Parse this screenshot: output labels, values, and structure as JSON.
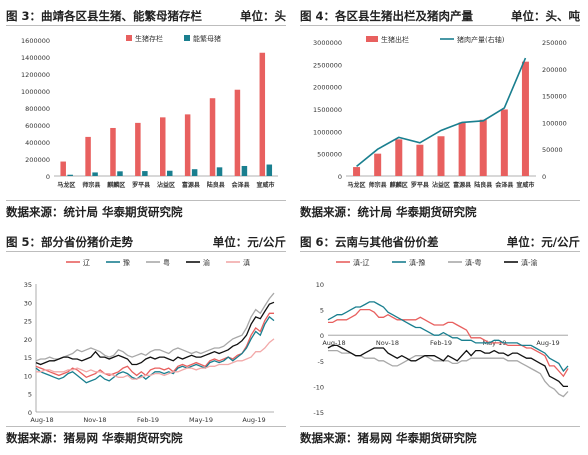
{
  "panels": [
    {
      "title": "图 3：曲靖各区县生猪、能繁母猪存栏",
      "unit": "单位：头",
      "source": "数据来源：统计局  华泰期货研究院"
    },
    {
      "title": "图 4：各区县生猪出栏及猪肉产量",
      "unit": "单位：头、吨",
      "source": "数据来源：统计局  华泰期货研究院"
    },
    {
      "title": "图 5：部分省份猪价走势",
      "unit": "单位：元/公斤",
      "source": "数据来源：猪易网  华泰期货研究院"
    },
    {
      "title": "图 6：云南与其他省份价差",
      "unit": "单位：元/公斤",
      "source": "数据来源：猪易网  华泰期货研究院"
    }
  ],
  "colors": {
    "red": "#e8605f",
    "teal": "#1a7f8f",
    "gray": "#a8a8a8",
    "black": "#111111",
    "pink": "#f2a9a9"
  },
  "chart_data": [
    {
      "type": "bar",
      "categories": [
        "马龙区",
        "师宗县",
        "麒麟区",
        "罗平县",
        "沾益区",
        "富源县",
        "陆良县",
        "会泽县",
        "宣威市"
      ],
      "series": [
        {
          "name": "生猪存栏",
          "values": [
            170000,
            460000,
            565000,
            625000,
            690000,
            725000,
            915000,
            1015000,
            1450000
          ]
        },
        {
          "name": "能繁母猪",
          "values": [
            15000,
            42000,
            55000,
            58000,
            62000,
            80000,
            102000,
            118000,
            135000
          ]
        }
      ],
      "yticks": [
        0,
        200000,
        400000,
        600000,
        800000,
        1000000,
        1200000,
        1400000,
        1600000
      ],
      "ylim": [
        0,
        1600000
      ],
      "legend": "top-right"
    },
    {
      "type": "bar",
      "categories": [
        "马龙区",
        "师宗县",
        "麒麟区",
        "罗平县",
        "沾益区",
        "富源县",
        "陆良县",
        "会泽县",
        "宣威市"
      ],
      "series": [
        {
          "name": "生猪出栏",
          "type": "bar",
          "axis": "left",
          "values": [
            200000,
            500000,
            820000,
            700000,
            890000,
            1200000,
            1260000,
            1490000,
            2560000
          ]
        },
        {
          "name": "猪肉产量(右轴)",
          "type": "line",
          "axis": "right",
          "values": [
            18000,
            50000,
            72000,
            62000,
            85000,
            100000,
            103000,
            127000,
            220000
          ]
        }
      ],
      "yticks_left": [
        0,
        500000,
        1000000,
        1500000,
        2000000,
        2500000,
        3000000
      ],
      "ylim_left": [
        0,
        3000000
      ],
      "yticks_right": [
        0,
        50000,
        100000,
        150000,
        200000,
        250000
      ],
      "ylim_right": [
        0,
        250000
      ],
      "legend": "top"
    },
    {
      "type": "line",
      "xticks": [
        "Aug-18",
        "Nov-18",
        "Feb-19",
        "May-19",
        "Aug-19"
      ],
      "yticks": [
        0,
        5,
        10,
        15,
        20,
        25,
        30,
        35
      ],
      "ylim": [
        0,
        35
      ],
      "series": [
        {
          "name": "辽",
          "values": [
            12.5,
            12,
            11.5,
            11,
            10.5,
            10,
            10.5,
            11,
            12,
            11.5,
            10.5,
            9.5,
            10,
            10.5,
            11.5,
            10.5,
            10,
            10.5,
            11,
            12,
            12.5,
            11,
            10,
            11,
            10,
            11.5,
            12,
            12,
            11.5,
            12,
            11,
            12.5,
            13,
            12.5,
            13,
            13.5,
            13,
            12.5,
            14,
            14.5,
            14,
            14.5,
            15,
            14.5,
            15.5,
            16,
            18,
            21,
            23,
            22,
            25,
            27,
            27
          ]
        },
        {
          "name": "豫",
          "values": [
            12,
            11,
            10.5,
            10,
            9.5,
            9,
            9.5,
            10.5,
            11,
            10,
            9,
            8,
            8.5,
            9,
            10,
            9,
            8.5,
            9.5,
            10.5,
            11,
            10.5,
            9.5,
            9,
            10,
            9,
            10,
            11,
            11,
            10.5,
            11,
            10.5,
            12,
            12.5,
            12,
            12.5,
            13,
            12.5,
            12,
            13.5,
            14,
            13.5,
            14,
            15,
            14,
            15,
            16,
            17.5,
            20,
            22,
            21,
            24,
            26,
            25
          ]
        },
        {
          "name": "粤",
          "values": [
            14,
            14.5,
            14.5,
            15,
            14.5,
            14.5,
            15,
            15.5,
            16,
            17,
            16.5,
            17,
            17.5,
            17,
            16.5,
            15.5,
            15,
            15.5,
            17,
            16.5,
            15.5,
            15,
            15.5,
            16,
            15.5,
            16.5,
            17,
            17,
            16.5,
            16,
            17,
            17.5,
            17,
            16.5,
            16,
            16.5,
            16,
            16.5,
            17,
            17.5,
            17.5,
            18,
            19,
            20,
            20.5,
            21,
            23,
            26,
            28,
            27,
            29,
            31,
            32.5
          ]
        },
        {
          "name": "渝",
          "values": [
            13.5,
            13,
            13.5,
            14,
            14,
            14.5,
            15,
            15,
            14.5,
            14.5,
            14,
            14.5,
            15,
            16.5,
            15,
            15,
            14.5,
            15,
            15.5,
            15,
            14.5,
            13,
            13,
            13.5,
            14.5,
            15,
            14.5,
            15,
            15,
            14.5,
            14,
            15,
            14.5,
            15,
            15.5,
            15,
            15,
            15.5,
            16,
            16.5,
            16,
            16.5,
            17,
            18,
            18.5,
            19.5,
            21,
            24,
            26,
            25.5,
            27.5,
            29.5,
            30
          ]
        },
        {
          "name": "滇",
          "values": [
            11,
            11,
            11.5,
            11.5,
            11,
            11,
            11,
            11.5,
            11.5,
            12,
            11.5,
            11,
            11.5,
            11,
            11,
            10.5,
            10.5,
            10,
            9.5,
            9.5,
            10,
            9,
            9,
            9.5,
            10,
            10,
            10.5,
            10.5,
            10,
            10.5,
            11,
            11,
            11.5,
            12,
            12,
            11.5,
            12,
            12,
            12.5,
            12.5,
            13,
            13,
            13,
            13.5,
            14,
            14,
            14.5,
            15,
            16.5,
            16.5,
            17.5,
            19,
            20
          ]
        }
      ],
      "legend": "top"
    },
    {
      "type": "line",
      "xticks": [
        "Aug-18",
        "Nov-18",
        "Feb-19",
        "May-19",
        "Aug-19"
      ],
      "yticks": [
        -15,
        -10,
        -5,
        0,
        5,
        10
      ],
      "ylim": [
        -15,
        10
      ],
      "series": [
        {
          "name": "滇-辽",
          "values": [
            2.5,
            2.5,
            3,
            3,
            3,
            3.5,
            4,
            5,
            5,
            5,
            4.5,
            3.5,
            3.5,
            4,
            3.5,
            3,
            3,
            3,
            3,
            3,
            3.5,
            3,
            2.5,
            2,
            2,
            2,
            2.5,
            2.5,
            2,
            1.5,
            1,
            -0.5,
            -0.5,
            -0.5,
            -1,
            -1.5,
            -1.5,
            -1.5,
            -1.5,
            -2,
            -2,
            -2,
            -2,
            -2.5,
            -2.5,
            -3,
            -3.5,
            -4,
            -6,
            -6,
            -7,
            -8,
            -6.5
          ]
        },
        {
          "name": "滇-豫",
          "values": [
            3,
            3.5,
            4,
            4,
            4.5,
            5,
            5.5,
            5.5,
            6,
            6.5,
            6.5,
            6,
            5.5,
            4.5,
            4,
            3.5,
            3,
            2.5,
            2,
            1.5,
            1.5,
            1,
            0.5,
            0,
            0,
            0.5,
            0,
            -0.5,
            -0.5,
            -1,
            -1,
            -1,
            -1.5,
            -1.5,
            -1.5,
            -1.5,
            -1,
            -1,
            -1.5,
            -1.5,
            -1.5,
            -1.5,
            -2,
            -2,
            -2,
            -2.5,
            -3,
            -3.5,
            -4.5,
            -5,
            -5.5,
            -7,
            -6
          ]
        },
        {
          "name": "滇-粤",
          "values": [
            -3,
            -3,
            -3,
            -3.5,
            -3.5,
            -3.5,
            -4,
            -4,
            -4.5,
            -4.5,
            -4.5,
            -5,
            -5,
            -5.5,
            -6,
            -6,
            -5.5,
            -5,
            -4.5,
            -4,
            -4,
            -4,
            -4.5,
            -5,
            -5,
            -5,
            -5,
            -5.5,
            -5.5,
            -5,
            -5,
            -4.5,
            -4.5,
            -4.5,
            -4.5,
            -4.5,
            -4.5,
            -4.5,
            -4.5,
            -5,
            -5,
            -5,
            -5.5,
            -6,
            -6.5,
            -7,
            -7.5,
            -9,
            -10,
            -10.5,
            -11.5,
            -12,
            -11
          ]
        },
        {
          "name": "滇-渝",
          "values": [
            -2.5,
            -2,
            -2,
            -2.5,
            -3,
            -3.5,
            -4,
            -4,
            -3.5,
            -3,
            -2.5,
            -2.5,
            -2.5,
            -3.5,
            -4,
            -4.5,
            -4,
            -4.5,
            -5,
            -5,
            -4.5,
            -4,
            -4,
            -4,
            -4.5,
            -5,
            -4,
            -4.5,
            -5,
            -4,
            -3,
            -4,
            -3,
            -3,
            -3.5,
            -3.5,
            -3,
            -3.5,
            -3.5,
            -4,
            -3.5,
            -3.5,
            -4,
            -4.5,
            -4.5,
            -5,
            -5.5,
            -6,
            -8,
            -8.5,
            -9,
            -10,
            -10
          ]
        }
      ],
      "legend": "top"
    }
  ]
}
